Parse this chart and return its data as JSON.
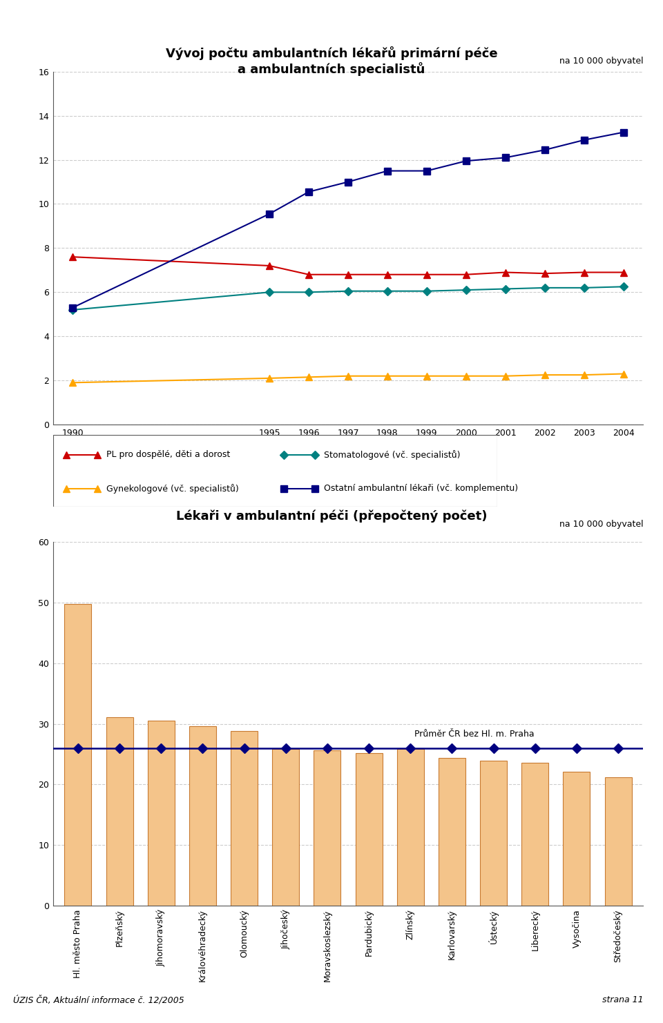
{
  "title1": "Vývoj počtu ambulantních lékařů primární péče\na ambulantních specialistů",
  "unit_label": "na 10 000 obyvatel",
  "line_years": [
    1990,
    1995,
    1996,
    1997,
    1998,
    1999,
    2000,
    2001,
    2002,
    2003,
    2004
  ],
  "line_series": {
    "PL pro dospělé, děti a dorost": {
      "values": [
        7.6,
        7.2,
        6.8,
        6.8,
        6.8,
        6.8,
        6.8,
        6.9,
        6.85,
        6.9,
        6.9
      ],
      "color": "#cc0000",
      "marker": "^",
      "markersize": 7
    },
    "Stomatologové (vč. specialistů)": {
      "values": [
        5.2,
        6.0,
        6.0,
        6.05,
        6.05,
        6.05,
        6.1,
        6.15,
        6.2,
        6.2,
        6.25
      ],
      "color": "#008080",
      "marker": "D",
      "markersize": 6
    },
    "Gynekologové (vč. specialistů)": {
      "values": [
        1.9,
        2.1,
        2.15,
        2.2,
        2.2,
        2.2,
        2.2,
        2.2,
        2.25,
        2.25,
        2.3
      ],
      "color": "#ffa500",
      "marker": "^",
      "markersize": 7
    },
    "Ostatní ambulantní lékaři (vč. komplementu)": {
      "values": [
        5.3,
        9.55,
        10.55,
        11.0,
        11.5,
        11.5,
        11.95,
        12.1,
        12.45,
        12.9,
        13.25
      ],
      "color": "#000080",
      "marker": "s",
      "markersize": 7
    }
  },
  "line_ylim": [
    0,
    16
  ],
  "line_yticks": [
    0,
    2,
    4,
    6,
    8,
    10,
    12,
    14,
    16
  ],
  "title2": "Lékaři v ambulantní péči (přepočtený počet)",
  "bar_categories": [
    "Hl. město Praha",
    "Plzeňský",
    "Jihomoravský",
    "Královéhradecký",
    "Olomoucký",
    "Jihočeský",
    "Moravskoslezský",
    "Pardubický",
    "Zlínský",
    "Karlovarský",
    "Ústecký",
    "Liberecký",
    "Vysočina",
    "Středočeský"
  ],
  "bar_values": [
    49.8,
    31.1,
    30.5,
    29.6,
    28.8,
    25.8,
    25.6,
    25.2,
    25.8,
    24.3,
    23.9,
    23.6,
    22.1,
    21.2
  ],
  "bar_color": "#f4c48a",
  "bar_edge_color": "#c87a30",
  "average_line": 26.0,
  "average_label": "Průměr ČR bez Hl. m. Praha",
  "average_color": "#000080",
  "average_marker": "D",
  "average_marker_size": 7,
  "bar_ylim": [
    0,
    60
  ],
  "bar_yticks": [
    0,
    10,
    20,
    30,
    40,
    50,
    60
  ],
  "bar_unit_label": "na 10 000 obyvatel",
  "footer_left": "ÚZIS ČR, Aktuální informace č. 12/2005",
  "footer_right": "strana 11",
  "background_color": "#ffffff",
  "grid_color": "#cccccc"
}
